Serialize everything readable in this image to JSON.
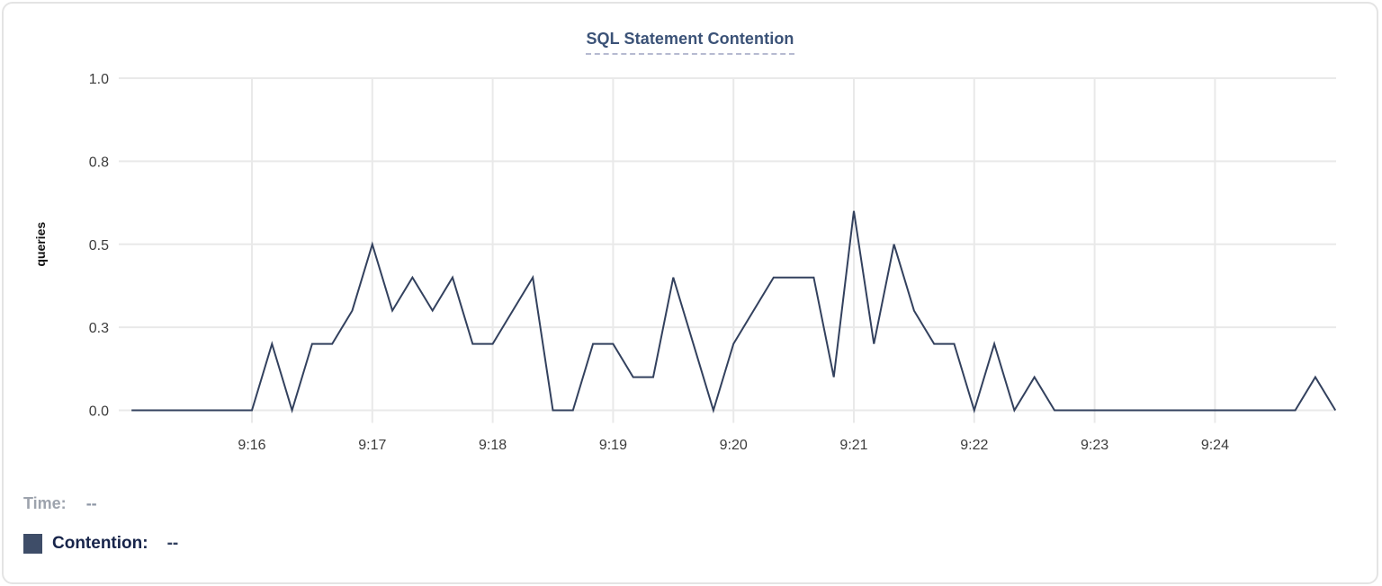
{
  "chart_data": {
    "type": "line",
    "title": "SQL Statement Contention",
    "xlabel": "",
    "ylabel": "queries",
    "ylim": [
      0,
      1
    ],
    "grid": true,
    "x_range": [
      "9:15:00",
      "9:25:00"
    ],
    "interval_seconds": 10,
    "y_ticks": [
      {
        "label": "1.0",
        "value": 1.0
      },
      {
        "label": "0.8",
        "value": 0.75
      },
      {
        "label": "0.5",
        "value": 0.5
      },
      {
        "label": "0.3",
        "value": 0.25
      },
      {
        "label": "0.0",
        "value": 0.0
      }
    ],
    "x_ticks": [
      {
        "label": "9:16",
        "time": "9:16:00"
      },
      {
        "label": "9:17",
        "time": "9:17:00"
      },
      {
        "label": "9:18",
        "time": "9:18:00"
      },
      {
        "label": "9:19",
        "time": "9:19:00"
      },
      {
        "label": "9:20",
        "time": "9:20:00"
      },
      {
        "label": "9:21",
        "time": "9:21:00"
      },
      {
        "label": "9:22",
        "time": "9:22:00"
      },
      {
        "label": "9:23",
        "time": "9:23:00"
      },
      {
        "label": "9:24",
        "time": "9:24:00"
      }
    ],
    "series": [
      {
        "name": "Contention",
        "color": "#33415e",
        "points": [
          [
            "9:15:00",
            0
          ],
          [
            "9:15:10",
            0
          ],
          [
            "9:15:20",
            0
          ],
          [
            "9:15:30",
            0
          ],
          [
            "9:15:40",
            0
          ],
          [
            "9:15:50",
            0
          ],
          [
            "9:16:00",
            0
          ],
          [
            "9:16:10",
            0.2
          ],
          [
            "9:16:20",
            0
          ],
          [
            "9:16:30",
            0.2
          ],
          [
            "9:16:40",
            0.2
          ],
          [
            "9:16:50",
            0.3
          ],
          [
            "9:17:00",
            0.5
          ],
          [
            "9:17:10",
            0.3
          ],
          [
            "9:17:20",
            0.4
          ],
          [
            "9:17:30",
            0.3
          ],
          [
            "9:17:40",
            0.4
          ],
          [
            "9:17:50",
            0.2
          ],
          [
            "9:18:00",
            0.2
          ],
          [
            "9:18:10",
            0.3
          ],
          [
            "9:18:20",
            0.4
          ],
          [
            "9:18:30",
            0
          ],
          [
            "9:18:40",
            0
          ],
          [
            "9:18:50",
            0.2
          ],
          [
            "9:19:00",
            0.2
          ],
          [
            "9:19:10",
            0.1
          ],
          [
            "9:19:20",
            0.1
          ],
          [
            "9:19:30",
            0.4
          ],
          [
            "9:19:40",
            0.2
          ],
          [
            "9:19:50",
            0
          ],
          [
            "9:20:00",
            0.2
          ],
          [
            "9:20:10",
            0.3
          ],
          [
            "9:20:20",
            0.4
          ],
          [
            "9:20:30",
            0.4
          ],
          [
            "9:20:40",
            0.4
          ],
          [
            "9:20:50",
            0.1
          ],
          [
            "9:21:00",
            0.6
          ],
          [
            "9:21:10",
            0.2
          ],
          [
            "9:21:20",
            0.5
          ],
          [
            "9:21:30",
            0.3
          ],
          [
            "9:21:40",
            0.2
          ],
          [
            "9:21:50",
            0.2
          ],
          [
            "9:22:00",
            0
          ],
          [
            "9:22:10",
            0.2
          ],
          [
            "9:22:20",
            0
          ],
          [
            "9:22:30",
            0.1
          ],
          [
            "9:22:40",
            0
          ],
          [
            "9:22:50",
            0
          ],
          [
            "9:23:00",
            0
          ],
          [
            "9:23:10",
            0
          ],
          [
            "9:23:20",
            0
          ],
          [
            "9:23:30",
            0
          ],
          [
            "9:23:40",
            0
          ],
          [
            "9:23:50",
            0
          ],
          [
            "9:24:00",
            0
          ],
          [
            "9:24:10",
            0
          ],
          [
            "9:24:20",
            0
          ],
          [
            "9:24:30",
            0
          ],
          [
            "9:24:40",
            0
          ],
          [
            "9:24:50",
            0.1
          ],
          [
            "9:25:00",
            0
          ]
        ]
      }
    ]
  },
  "legend": {
    "time_label": "Time:",
    "time_value": "--",
    "contention_label": "Contention:",
    "contention_value": "--",
    "swatch_color": "#3e4d68"
  },
  "colors": {
    "line": "#33415e",
    "grid": "#e9e9e9",
    "tick_text": "#3c3c3c",
    "title_text": "#3b5277",
    "title_underline": "#b6bad1",
    "card_border": "#e4e4e4"
  }
}
